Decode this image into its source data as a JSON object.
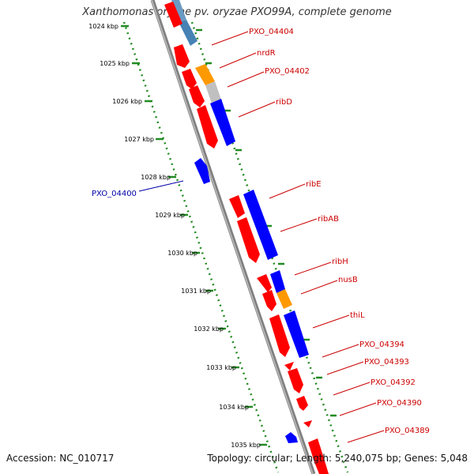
{
  "title": "Xanthomonas oryzae pv. oryzae PXO99A, complete genome",
  "footer": {
    "accession": "Accession: NC_010717",
    "topology": "Topology: circular; Length: 5,240,075 bp; Genes: 5,048"
  },
  "colors": {
    "backbone": "#808080",
    "ticks": "#228b22",
    "forward_gene": "#ff0000",
    "reverse_gene": "#0000ff",
    "rna_gene": "#ff9900",
    "pseudo_gene": "#4682b4",
    "label_forward": "#cc0000",
    "label_reverse": "#0000aa"
  },
  "scale_labels": [
    "1024 kbp",
    "1025 kbp",
    "1026 kbp",
    "1027 kbp",
    "1028 kbp",
    "1029 kbp",
    "1030 kbp",
    "1031 kbp",
    "1032 kbp",
    "1033 kbp",
    "1034 kbp",
    "1035 kbp"
  ],
  "gene_labels": [
    {
      "text": "PXO_04404",
      "strand": "forward"
    },
    {
      "text": "nrdR",
      "strand": "forward"
    },
    {
      "text": "PXO_04402",
      "strand": "forward"
    },
    {
      "text": "ribD",
      "strand": "forward"
    },
    {
      "text": "PXO_04400",
      "strand": "reverse"
    },
    {
      "text": "ribE",
      "strand": "forward"
    },
    {
      "text": "ribAB",
      "strand": "forward"
    },
    {
      "text": "ribH",
      "strand": "forward"
    },
    {
      "text": "nusB",
      "strand": "forward"
    },
    {
      "text": "thiL",
      "strand": "forward"
    },
    {
      "text": "PXO_04394",
      "strand": "forward"
    },
    {
      "text": "PXO_04393",
      "strand": "forward"
    },
    {
      "text": "PXO_04392",
      "strand": "forward"
    },
    {
      "text": "PXO_04390",
      "strand": "forward"
    },
    {
      "text": "PXO_04389",
      "strand": "forward"
    }
  ]
}
